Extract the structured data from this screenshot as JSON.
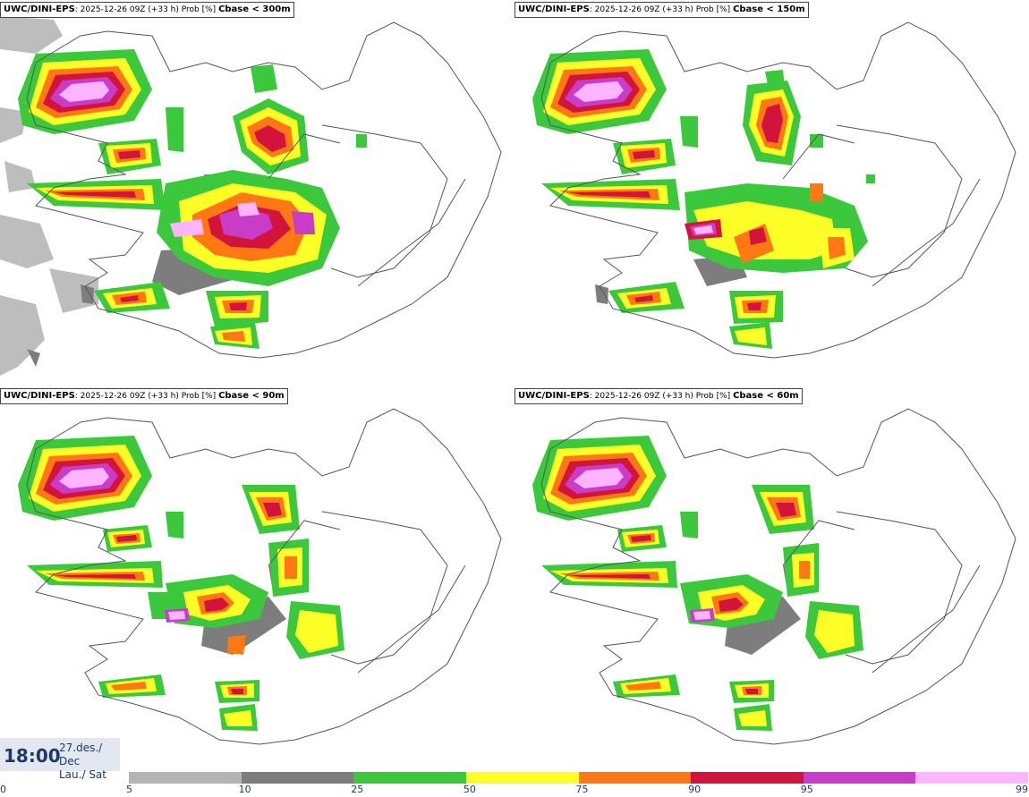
{
  "panels": [
    {
      "model": "UWC/DINI-EPS",
      "run": "2025-12-26 09Z (+33 h) Prob [%]",
      "threshold": "Cbase < 300m"
    },
    {
      "model": "UWC/DINI-EPS",
      "run": "2025-12-26 09Z (+33 h) Prob [%]",
      "threshold": "Cbase < 150m"
    },
    {
      "model": "UWC/DINI-EPS",
      "run": "2025-12-26 09Z (+33 h) Prob [%]",
      "threshold": "Cbase < 90m"
    },
    {
      "model": "UWC/DINI-EPS",
      "run": "2025-12-26 09Z (+33 h) Prob [%]",
      "threshold": "Cbase < 60m"
    }
  ],
  "valid_time": {
    "time": "18:00",
    "date_line1": "27.des./ Dec",
    "date_line2": "Lau./ Sat"
  },
  "legend": {
    "ticks": [
      "0",
      "5",
      "10",
      "25",
      "50",
      "75",
      "90",
      "95",
      "99"
    ],
    "colors": [
      "#b4b4b4",
      "#7d7d7d",
      "#3cc83c",
      "#ffff28",
      "#ff7814",
      "#d2143c",
      "#c83cc8",
      "#ffb4ff"
    ]
  }
}
